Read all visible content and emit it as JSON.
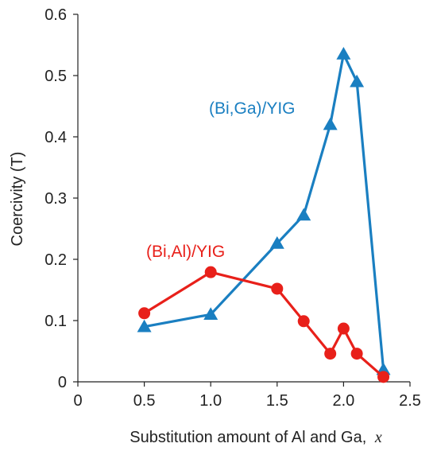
{
  "chart_data": {
    "type": "line",
    "xlabel": "Substitution amount of Al and Ga,",
    "xlabel_var": "x",
    "ylabel": "Coercivity (T)",
    "xlim": [
      0,
      2.5
    ],
    "ylim": [
      0,
      0.6
    ],
    "x_ticks": [
      "0",
      "0.5",
      "1.0",
      "1.5",
      "2.0",
      "2.5"
    ],
    "y_ticks": [
      "0",
      "0.1",
      "0.2",
      "0.3",
      "0.4",
      "0.5",
      "0.6"
    ],
    "x_tick_values": [
      0,
      0.5,
      1.0,
      1.5,
      2.0,
      2.5
    ],
    "y_tick_values": [
      0,
      0.1,
      0.2,
      0.3,
      0.4,
      0.5,
      0.6
    ],
    "grid": false,
    "series": [
      {
        "name": "(Bi,Ga)/YIG",
        "color": "#1a7fc1",
        "marker": "triangle",
        "x": [
          0.5,
          1.0,
          1.5,
          1.7,
          1.9,
          2.0,
          2.1,
          2.3
        ],
        "y": [
          0.09,
          0.11,
          0.226,
          0.272,
          0.42,
          0.535,
          0.49,
          0.02
        ]
      },
      {
        "name": "(Bi,Al)/YIG",
        "color": "#e8201a",
        "marker": "circle",
        "x": [
          0.5,
          1.0,
          1.5,
          1.7,
          1.9,
          2.0,
          2.1,
          2.3
        ],
        "y": [
          0.112,
          0.179,
          0.152,
          0.099,
          0.046,
          0.087,
          0.046,
          0.008
        ]
      }
    ]
  }
}
